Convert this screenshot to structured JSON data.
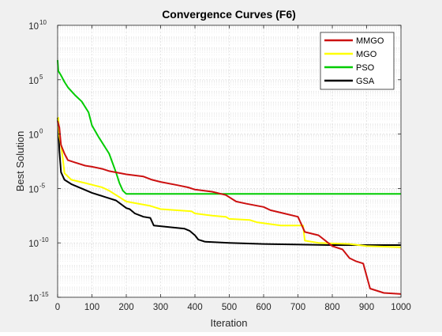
{
  "chart_data": {
    "type": "line",
    "title": "Convergence Curves (F6)",
    "xlabel": "Iteration",
    "ylabel": "Best Solution",
    "xlim": [
      0,
      1000
    ],
    "ylim_log10": [
      -15,
      10
    ],
    "yscale": "log",
    "grid": "on (major and minor)",
    "legend_position": "top-right",
    "xticks": [
      "0",
      "100",
      "200",
      "300",
      "400",
      "500",
      "600",
      "700",
      "800",
      "900",
      "1000"
    ],
    "yticks": [
      {
        "base": "10",
        "exp": "-15"
      },
      {
        "base": "10",
        "exp": "-10"
      },
      {
        "base": "10",
        "exp": "-5"
      },
      {
        "base": "10",
        "exp": "0"
      },
      {
        "base": "10",
        "exp": "5"
      },
      {
        "base": "10",
        "exp": "10"
      }
    ],
    "series": [
      {
        "name": "MMGO",
        "color": "#cc1010",
        "x_log10y": [
          [
            0,
            1.2
          ],
          [
            5,
            0.6
          ],
          [
            10,
            -1.0
          ],
          [
            20,
            -1.8
          ],
          [
            30,
            -2.4
          ],
          [
            50,
            -2.6
          ],
          [
            80,
            -2.9
          ],
          [
            100,
            -3.0
          ],
          [
            130,
            -3.2
          ],
          [
            150,
            -3.4
          ],
          [
            200,
            -3.7
          ],
          [
            250,
            -3.9
          ],
          [
            275,
            -4.2
          ],
          [
            300,
            -4.4
          ],
          [
            350,
            -4.7
          ],
          [
            380,
            -4.9
          ],
          [
            400,
            -5.1
          ],
          [
            450,
            -5.3
          ],
          [
            490,
            -5.6
          ],
          [
            520,
            -6.2
          ],
          [
            550,
            -6.4
          ],
          [
            600,
            -6.7
          ],
          [
            620,
            -7.0
          ],
          [
            660,
            -7.3
          ],
          [
            700,
            -7.6
          ],
          [
            720,
            -9.0
          ],
          [
            760,
            -9.3
          ],
          [
            800,
            -10.3
          ],
          [
            830,
            -10.6
          ],
          [
            850,
            -11.4
          ],
          [
            870,
            -11.7
          ],
          [
            890,
            -11.9
          ],
          [
            910,
            -14.2
          ],
          [
            950,
            -14.6
          ],
          [
            1000,
            -14.7
          ]
        ]
      },
      {
        "name": "MGO",
        "color": "#ffff00",
        "x_log10y": [
          [
            0,
            1.3
          ],
          [
            2,
            1.5
          ],
          [
            5,
            -0.2
          ],
          [
            10,
            -1.0
          ],
          [
            15,
            -2.2
          ],
          [
            20,
            -3.6
          ],
          [
            40,
            -4.2
          ],
          [
            80,
            -4.5
          ],
          [
            130,
            -4.9
          ],
          [
            150,
            -5.2
          ],
          [
            200,
            -6.2
          ],
          [
            270,
            -6.6
          ],
          [
            300,
            -6.9
          ],
          [
            390,
            -7.1
          ],
          [
            400,
            -7.3
          ],
          [
            450,
            -7.5
          ],
          [
            490,
            -7.6
          ],
          [
            500,
            -7.8
          ],
          [
            560,
            -7.9
          ],
          [
            580,
            -8.1
          ],
          [
            650,
            -8.4
          ],
          [
            715,
            -8.4
          ],
          [
            720,
            -9.8
          ],
          [
            760,
            -10.0
          ],
          [
            850,
            -10.1
          ],
          [
            900,
            -10.3
          ],
          [
            1000,
            -10.4
          ]
        ]
      },
      {
        "name": "PSO",
        "color": "#00cc00",
        "x_log10y": [
          [
            0,
            6.8
          ],
          [
            2,
            5.8
          ],
          [
            10,
            5.4
          ],
          [
            20,
            4.8
          ],
          [
            30,
            4.3
          ],
          [
            50,
            3.6
          ],
          [
            70,
            3.0
          ],
          [
            90,
            2.0
          ],
          [
            100,
            0.8
          ],
          [
            120,
            -0.3
          ],
          [
            150,
            -1.8
          ],
          [
            170,
            -3.5
          ],
          [
            180,
            -4.5
          ],
          [
            190,
            -5.2
          ],
          [
            200,
            -5.5
          ],
          [
            1000,
            -5.5
          ]
        ]
      },
      {
        "name": "GSA",
        "color": "#000000",
        "x_log10y": [
          [
            0,
            1.5
          ],
          [
            3,
            0.0
          ],
          [
            5,
            -1.5
          ],
          [
            10,
            -3.5
          ],
          [
            20,
            -4.2
          ],
          [
            40,
            -4.6
          ],
          [
            70,
            -5.0
          ],
          [
            100,
            -5.4
          ],
          [
            140,
            -5.8
          ],
          [
            170,
            -6.1
          ],
          [
            200,
            -6.8
          ],
          [
            210,
            -6.9
          ],
          [
            225,
            -7.3
          ],
          [
            250,
            -7.6
          ],
          [
            270,
            -7.7
          ],
          [
            280,
            -8.4
          ],
          [
            370,
            -8.7
          ],
          [
            385,
            -8.9
          ],
          [
            400,
            -9.3
          ],
          [
            410,
            -9.7
          ],
          [
            430,
            -9.9
          ],
          [
            500,
            -10.0
          ],
          [
            600,
            -10.1
          ],
          [
            800,
            -10.2
          ],
          [
            1000,
            -10.2
          ]
        ]
      }
    ]
  }
}
